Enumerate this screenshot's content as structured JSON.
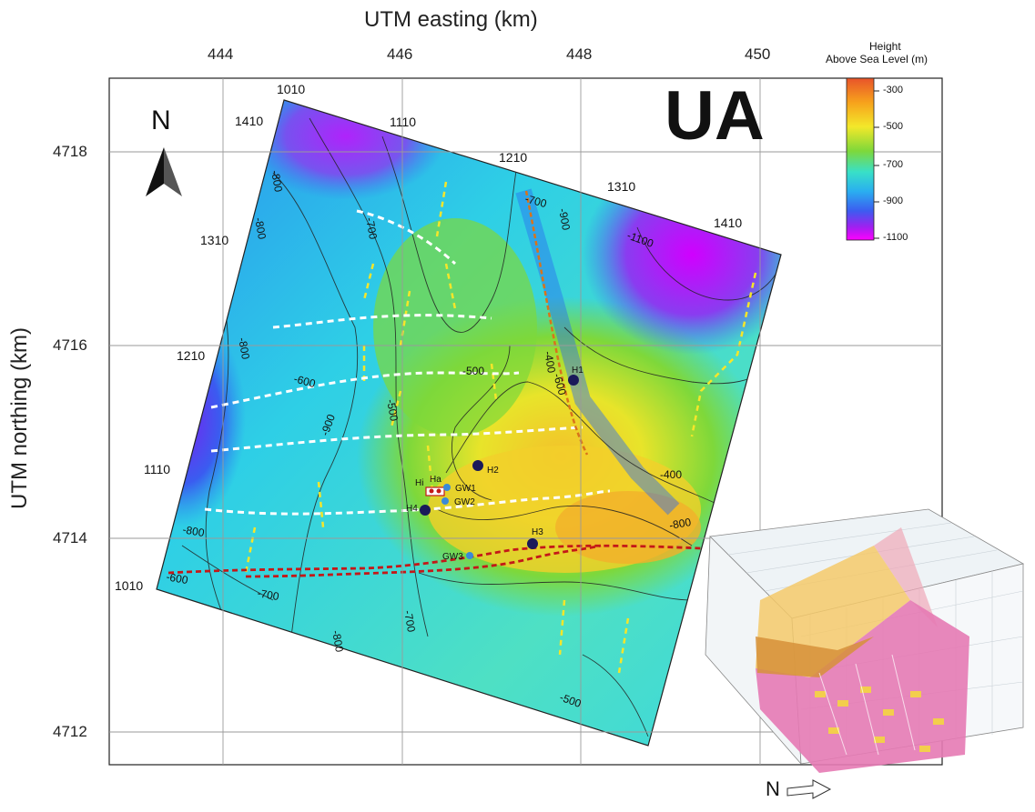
{
  "map": {
    "x_axis_title": "UTM easting (km)",
    "y_axis_title": "UTM northing (km)",
    "x_ticks": [
      "444",
      "446",
      "448",
      "450"
    ],
    "y_ticks": [
      "4718",
      "4716",
      "4714",
      "4712"
    ],
    "area_label": "UA",
    "north_label": "N",
    "inset_north_label": "N"
  },
  "line_labels": {
    "top": [
      "1010",
      "1110",
      "1210",
      "1310",
      "1410"
    ],
    "left": [
      "1410",
      "1310",
      "1210",
      "1110",
      "1010"
    ]
  },
  "contour_labels": [
    "-800",
    "-700",
    "-900",
    "-1100",
    "-800",
    "-800",
    "-600",
    "-700",
    "-500",
    "-500",
    "-400",
    "-600",
    "-400",
    "-800",
    "-900",
    "-800",
    "-600",
    "-700",
    "-700",
    "-500",
    "-800"
  ],
  "wells": [
    "H1",
    "H2",
    "H3",
    "H4",
    "Ha",
    "Hi",
    "GW1",
    "GW2",
    "GW3"
  ],
  "legend": {
    "title_line1": "Height",
    "title_line2": "Above Sea Level (m)",
    "ticks": [
      "-300",
      "-500",
      "-700",
      "-900",
      "-1100"
    ],
    "gradient_colors": [
      "#e8542a",
      "#f7a21c",
      "#f3e82a",
      "#7ed83a",
      "#38e0c8",
      "#2aaef0",
      "#3c5cf0",
      "#a01ff0",
      "#ff00ff"
    ]
  }
}
